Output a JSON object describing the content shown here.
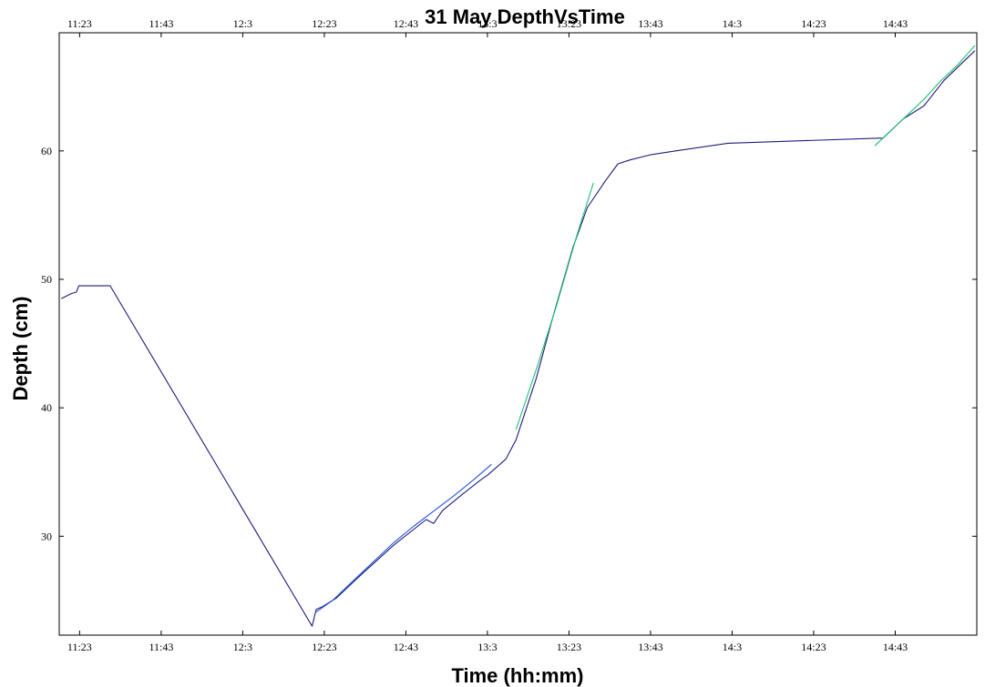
{
  "chart_data": {
    "type": "line",
    "title": "31 May DepthVsTime",
    "xlabel": "Time (hh:mm)",
    "ylabel": "Depth (cm)",
    "xlim": [
      678,
      903
    ],
    "ylim": [
      22.3,
      69.2
    ],
    "x_tick_values": [
      683,
      703,
      723,
      743,
      763,
      783,
      803,
      823,
      843,
      863,
      883
    ],
    "x_tick_labels": [
      "11:23",
      "11:43",
      "12:3",
      "12:23",
      "12:43",
      "13:3",
      "13:23",
      "13:43",
      "14:3",
      "14:23",
      "14:43"
    ],
    "y_tick_values": [
      30,
      40,
      50,
      60
    ],
    "y_tick_labels": [
      "30",
      "40",
      "50",
      "60"
    ],
    "top_axis_ticks": true,
    "grid": false,
    "series": [
      {
        "color": "#1c1c7a",
        "x": [
          678.5,
          681.0,
          682.2,
          682.8,
          690.5,
          740.0,
          741.0,
          742.5,
          746.0,
          748.0,
          752.0,
          760.0,
          766.0,
          768.0,
          769.8,
          772.0,
          777.0,
          781.0,
          783.2,
          787.5,
          790.0,
          795.0,
          799.0,
          804.0,
          807.5,
          812.0,
          815.0,
          818.0,
          823.0,
          829.0,
          842.0,
          880.0,
          885.0,
          890.0,
          895.0,
          902.5
        ],
        "y": [
          48.5,
          48.9,
          49.0,
          49.5,
          49.5,
          23.0,
          24.3,
          24.5,
          25.2,
          25.8,
          27.0,
          29.3,
          30.8,
          31.3,
          31.0,
          32.0,
          33.3,
          34.3,
          34.8,
          36.0,
          37.5,
          42.3,
          47.0,
          52.5,
          55.6,
          57.7,
          59.0,
          59.3,
          59.7,
          60.0,
          60.6,
          61.0,
          62.5,
          63.5,
          65.5,
          67.8
        ]
      },
      {
        "color": "#2255dd",
        "x": [
          741.0,
          745.0,
          750.0,
          755.0,
          760.0,
          765.0,
          770.0,
          775.0,
          780.0,
          784.0
        ],
        "y": [
          24.1,
          25.0,
          26.5,
          28.0,
          29.5,
          30.8,
          32.0,
          33.2,
          34.5,
          35.6
        ]
      },
      {
        "color": "#20c070",
        "x": [
          790.0,
          795.0,
          800.0,
          805.0,
          809.0
        ],
        "y": [
          38.3,
          43.0,
          48.0,
          53.5,
          57.5
        ]
      },
      {
        "color": "#20c070",
        "x": [
          878.0,
          882.0,
          886.0,
          890.0,
          894.0,
          898.0,
          902.5
        ],
        "y": [
          60.4,
          61.6,
          62.8,
          64.0,
          65.4,
          66.6,
          68.2
        ]
      }
    ]
  }
}
